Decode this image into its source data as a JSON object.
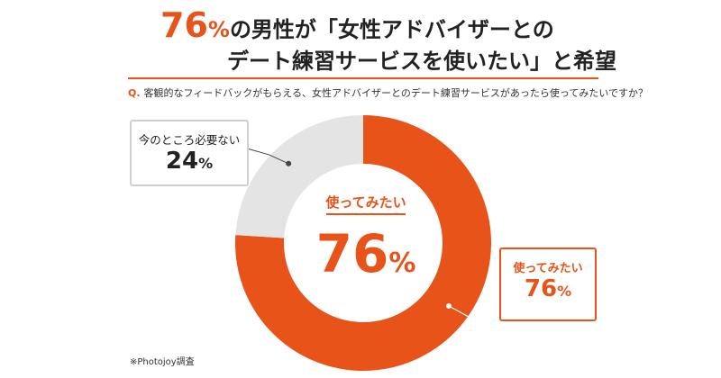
{
  "headline": {
    "line1_number": "76",
    "line1_unit": "%",
    "line1_text": "の男性が「女性アドバイザーとの",
    "line2_text": "デート練習サービスを使いたい」と希望"
  },
  "question": {
    "prefix": "Q.",
    "text": "客観的なフィードバックがもらえる、女性アドバイザーとのデート練習サービスがあったら使ってみたいですか？"
  },
  "chart_data": {
    "type": "pie",
    "variant": "donut",
    "categories": [
      "使ってみたい",
      "今のところ必要ない"
    ],
    "values": [
      76,
      24
    ],
    "unit": "%",
    "colors": [
      "#e8531a",
      "#e4e4e4"
    ],
    "center_label": "使ってみたい",
    "center_value": "76",
    "center_unit": "%"
  },
  "callouts": {
    "gray": {
      "label": "今のところ必要ない",
      "value": "24",
      "unit": "%"
    },
    "orange": {
      "label": "使ってみたい",
      "value": "76",
      "unit": "%"
    }
  },
  "source": "※Photojoy調査",
  "colors": {
    "accent": "#e8531a",
    "neutral": "#e4e4e4",
    "callout_border": "#cfcfcf"
  }
}
